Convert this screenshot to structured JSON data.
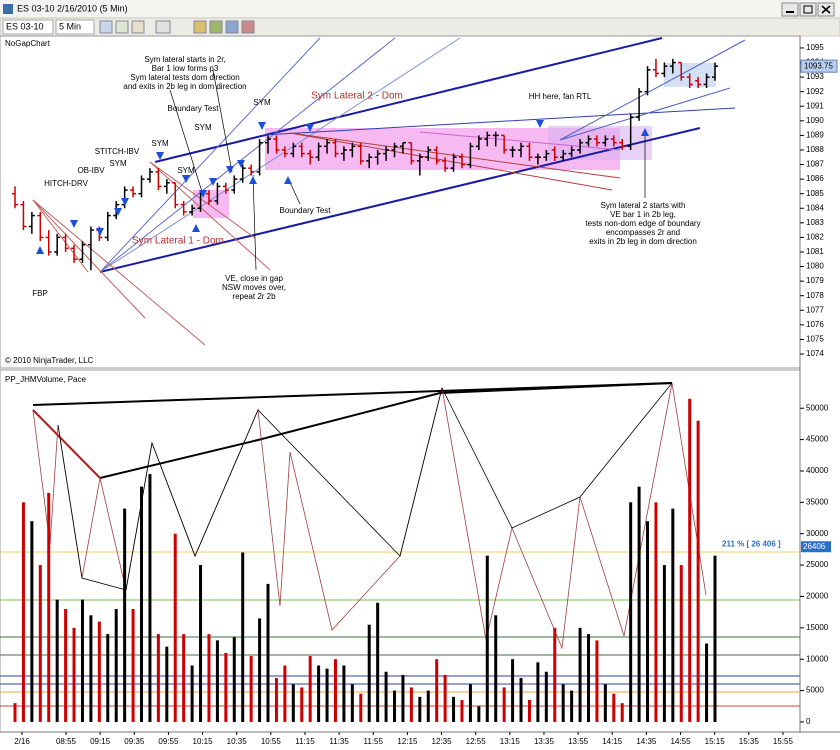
{
  "window": {
    "title": "ES 03-10 2/16/2010 (5 Min)"
  },
  "toolbar": {
    "instrument": "ES 03-10",
    "interval": "5 Min"
  },
  "price_panel": {
    "label": "NoGapChart",
    "copyright": "© 2010 NinjaTrader, LLC",
    "ylim": [
      1073.04,
      1095.82
    ],
    "yticks": [
      1074,
      1075,
      1076,
      1077,
      1078,
      1079,
      1080,
      1081,
      1082,
      1083,
      1084,
      1085,
      1086,
      1087,
      1088,
      1089,
      1090,
      1091,
      1092,
      1093,
      1094,
      1095
    ],
    "last_price": 1093.75,
    "up_color": "#000000",
    "down_color": "#cc0000",
    "bars": {
      "open": [
        1085,
        1084.25,
        1082.75,
        1083.5,
        1082,
        1081,
        1082,
        1081.25,
        1080.5,
        1081.5,
        1082.5,
        1082,
        1083.5,
        1084.25,
        1085.25,
        1085,
        1086,
        1086.5,
        1085.5,
        1085.75,
        1084.25,
        1083.75,
        1084,
        1085,
        1084.5,
        1085.5,
        1085.25,
        1086,
        1086.75,
        1086.5,
        1088.5,
        1088.75,
        1088,
        1087.75,
        1088.25,
        1087.75,
        1087.5,
        1088.25,
        1088.5,
        1087.75,
        1088,
        1088.25,
        1087.25,
        1087.5,
        1087.75,
        1088,
        1088.25,
        1088.5,
        1087.25,
        1087.5,
        1088,
        1087.25,
        1086.75,
        1087.5,
        1087,
        1088.25,
        1088.75,
        1089,
        1089,
        1088,
        1088,
        1088.25,
        1087.5,
        1087.5,
        1088,
        1087.5,
        1087.75,
        1088,
        1088.5,
        1088.75,
        1088.5,
        1088.75,
        1088.5,
        1088.25,
        1090.25,
        1092,
        1093.5,
        1093.25,
        1093.75,
        1094,
        1093,
        1092.75,
        1092.5,
        1093
      ],
      "high": [
        1085.5,
        1084.5,
        1083.75,
        1083.75,
        1082.5,
        1082.25,
        1082.25,
        1081.5,
        1081.75,
        1082.75,
        1082.75,
        1083.75,
        1084.5,
        1085.5,
        1085.5,
        1086.25,
        1086.75,
        1086.75,
        1086,
        1085.75,
        1084.5,
        1084.25,
        1085.25,
        1085.25,
        1085.75,
        1085.75,
        1086.25,
        1087,
        1087,
        1088.75,
        1089,
        1089,
        1088.25,
        1088.5,
        1088.5,
        1088,
        1088.5,
        1088.75,
        1088.75,
        1088.25,
        1088.5,
        1088.5,
        1087.75,
        1088,
        1088.25,
        1088.5,
        1088.5,
        1088.5,
        1087.75,
        1088.25,
        1088.25,
        1087.5,
        1087.75,
        1087.75,
        1088.5,
        1089,
        1089.25,
        1089.25,
        1089,
        1088.25,
        1088.5,
        1088.5,
        1087.75,
        1088,
        1088.25,
        1088,
        1088.25,
        1088.75,
        1089,
        1089,
        1089,
        1089,
        1088.75,
        1090.5,
        1092.25,
        1093.75,
        1094.25,
        1094,
        1094.25,
        1094,
        1093.25,
        1093,
        1093.25,
        1094
      ],
      "low": [
        1084,
        1082.5,
        1082.25,
        1081.75,
        1080.75,
        1080.75,
        1081,
        1080.25,
        1080.25,
        1079.75,
        1081.75,
        1081.75,
        1083.25,
        1084,
        1084.75,
        1084.75,
        1085.75,
        1085.25,
        1085,
        1084,
        1083.5,
        1083.5,
        1083.75,
        1084.25,
        1084.25,
        1085,
        1085,
        1085.75,
        1086.25,
        1086.25,
        1087.75,
        1087.75,
        1087.5,
        1087.5,
        1087.5,
        1087,
        1087.25,
        1087.75,
        1087.5,
        1087.25,
        1087.5,
        1087,
        1086.75,
        1087,
        1087.25,
        1087.5,
        1087.75,
        1087,
        1086.25,
        1087.25,
        1087,
        1086.5,
        1086.5,
        1086.75,
        1086.75,
        1088,
        1088.25,
        1088.25,
        1087.75,
        1087.5,
        1087.5,
        1087.25,
        1087,
        1087.25,
        1087.25,
        1087.25,
        1087.5,
        1087.75,
        1088.25,
        1088.25,
        1088.25,
        1088.25,
        1088,
        1088,
        1090,
        1091.75,
        1093,
        1093,
        1093.25,
        1092.75,
        1092.25,
        1092.25,
        1092.25,
        1092.75
      ],
      "close": [
        1084.25,
        1082.75,
        1083.5,
        1082,
        1081,
        1082,
        1081.25,
        1080.5,
        1081.5,
        1082.5,
        1082,
        1083.5,
        1084.25,
        1085.25,
        1085,
        1086,
        1086.5,
        1085.5,
        1085.75,
        1084.25,
        1083.75,
        1084,
        1085,
        1084.5,
        1085.5,
        1085.25,
        1086,
        1086.75,
        1086.5,
        1088.5,
        1088.75,
        1088,
        1087.75,
        1088.25,
        1087.75,
        1087.5,
        1088.25,
        1088.5,
        1087.75,
        1088,
        1088.25,
        1087.25,
        1087.5,
        1087.75,
        1088,
        1088.25,
        1088.5,
        1087.25,
        1087.5,
        1088,
        1087.25,
        1086.75,
        1087.5,
        1087,
        1088.25,
        1088.75,
        1089,
        1089,
        1088,
        1088,
        1088.25,
        1087.5,
        1087.5,
        1087.75,
        1087.5,
        1087.75,
        1088,
        1088.5,
        1088.75,
        1088.5,
        1088.75,
        1088.5,
        1088.25,
        1090.25,
        1092,
        1093.5,
        1093.25,
        1093.75,
        1094,
        1093,
        1092.5,
        1092.5,
        1093,
        1093.75
      ]
    },
    "annotations": [
      {
        "lines": [
          "Sym lateral starts in 2r,",
          "Bar 1 low forms p3",
          "Sym lateral tests dom direction",
          "and exits in 2b leg in dom direction"
        ]
      },
      {
        "text": "Boundary Test"
      },
      {
        "text": "SYM"
      },
      {
        "text": "SYM"
      },
      {
        "text": "SYM"
      },
      {
        "text": "SYM"
      },
      {
        "text": "STITCH-IBV"
      },
      {
        "text": "SYM"
      },
      {
        "text": "OB-IBV"
      },
      {
        "text": "HITCH-DRV"
      },
      {
        "text": "FBP"
      },
      {
        "text": "Sym Lateral 1 - Dom",
        "color": "#b03030"
      },
      {
        "text": "Sym Lateral 2 - Dom",
        "color": "#b03030"
      },
      {
        "text": "Boundary Test"
      },
      {
        "lines": [
          "VE, close in gap",
          "NSW moves over,",
          "repeat 2r 2b"
        ]
      },
      {
        "text": "HH here, fan RTL"
      },
      {
        "lines": [
          "Sym lateral 2 starts with",
          "VE bar 1 in 2b leg,",
          "tests non-dom edge of boundary",
          "encompasses 2r and",
          "exits in 2b leg in dom direction"
        ]
      }
    ]
  },
  "volume_panel": {
    "label": "PP_JHMVolume, Pace",
    "ylim": [
      -1282,
      56090
    ],
    "yticks": [
      0,
      5000,
      10000,
      15000,
      20000,
      25000,
      30000,
      35000,
      40000,
      45000,
      50000
    ],
    "values": [
      3000,
      35000,
      32000,
      25000,
      36500,
      19500,
      18000,
      15000,
      19500,
      17000,
      16000,
      14000,
      18000,
      34000,
      18000,
      37500,
      39500,
      14000,
      12000,
      30000,
      14000,
      9000,
      25000,
      14000,
      13000,
      11000,
      13500,
      27000,
      10500,
      16500,
      22000,
      7000,
      9000,
      6000,
      5500,
      10500,
      9000,
      8500,
      10000,
      9000,
      6000,
      4500,
      15500,
      19000,
      8000,
      5000,
      7500,
      5500,
      4000,
      5000,
      10000,
      7500,
      4000,
      3500,
      6000,
      2500,
      26500,
      17000,
      5500,
      10000,
      7000,
      3500,
      9500,
      8000,
      15000,
      6000,
      5000,
      15000,
      14000,
      13000,
      6000,
      4500,
      3000,
      35000,
      37500,
      32000,
      35000,
      25000,
      34000,
      25000,
      51500,
      48000,
      12500,
      26500
    ],
    "last_value": 26406,
    "pace_label": "211 % [ 26 406 ]"
  },
  "time_axis": {
    "labels": [
      "2/16",
      "08:55",
      "09:15",
      "09:35",
      "09:55",
      "10:15",
      "10:35",
      "10:55",
      "11:15",
      "11:35",
      "11:55",
      "12:15",
      "12:35",
      "12:55",
      "13:15",
      "13:35",
      "13:55",
      "14:15",
      "14:35",
      "14:55",
      "15:15",
      "15:35",
      "15:55"
    ]
  }
}
